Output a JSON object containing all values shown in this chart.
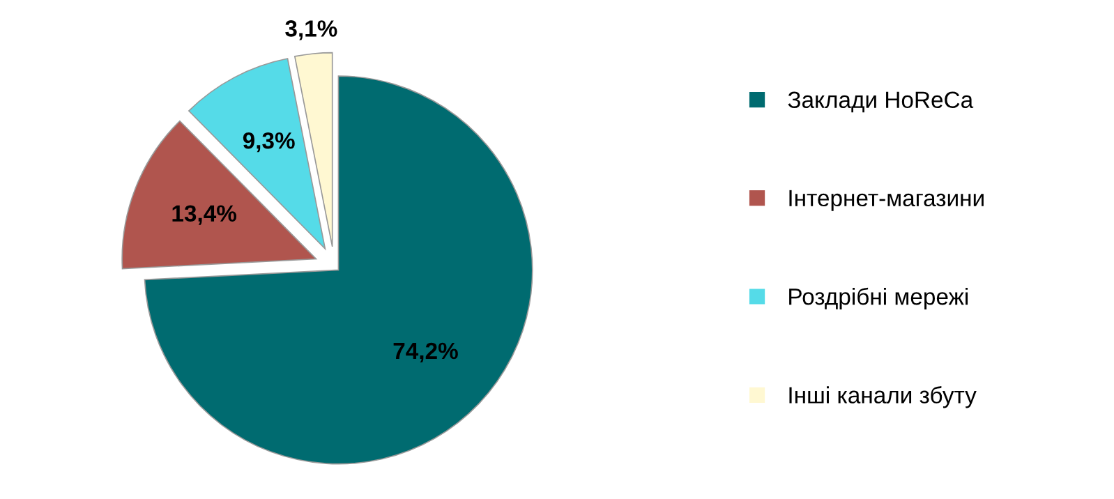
{
  "chart_data": {
    "type": "pie",
    "categories": [
      "Заклади HoReCa",
      "Інтернет-магазини",
      "Роздрібні мережі",
      "Інші канали збуту"
    ],
    "values": [
      74.2,
      13.4,
      9.3,
      3.1
    ],
    "value_labels": [
      "74,2%",
      "13,4%",
      "9,3%",
      "3,1%"
    ],
    "colors": [
      "#006b70",
      "#b0554e",
      "#55dbe8",
      "#fff8d2"
    ],
    "legend": "right"
  }
}
